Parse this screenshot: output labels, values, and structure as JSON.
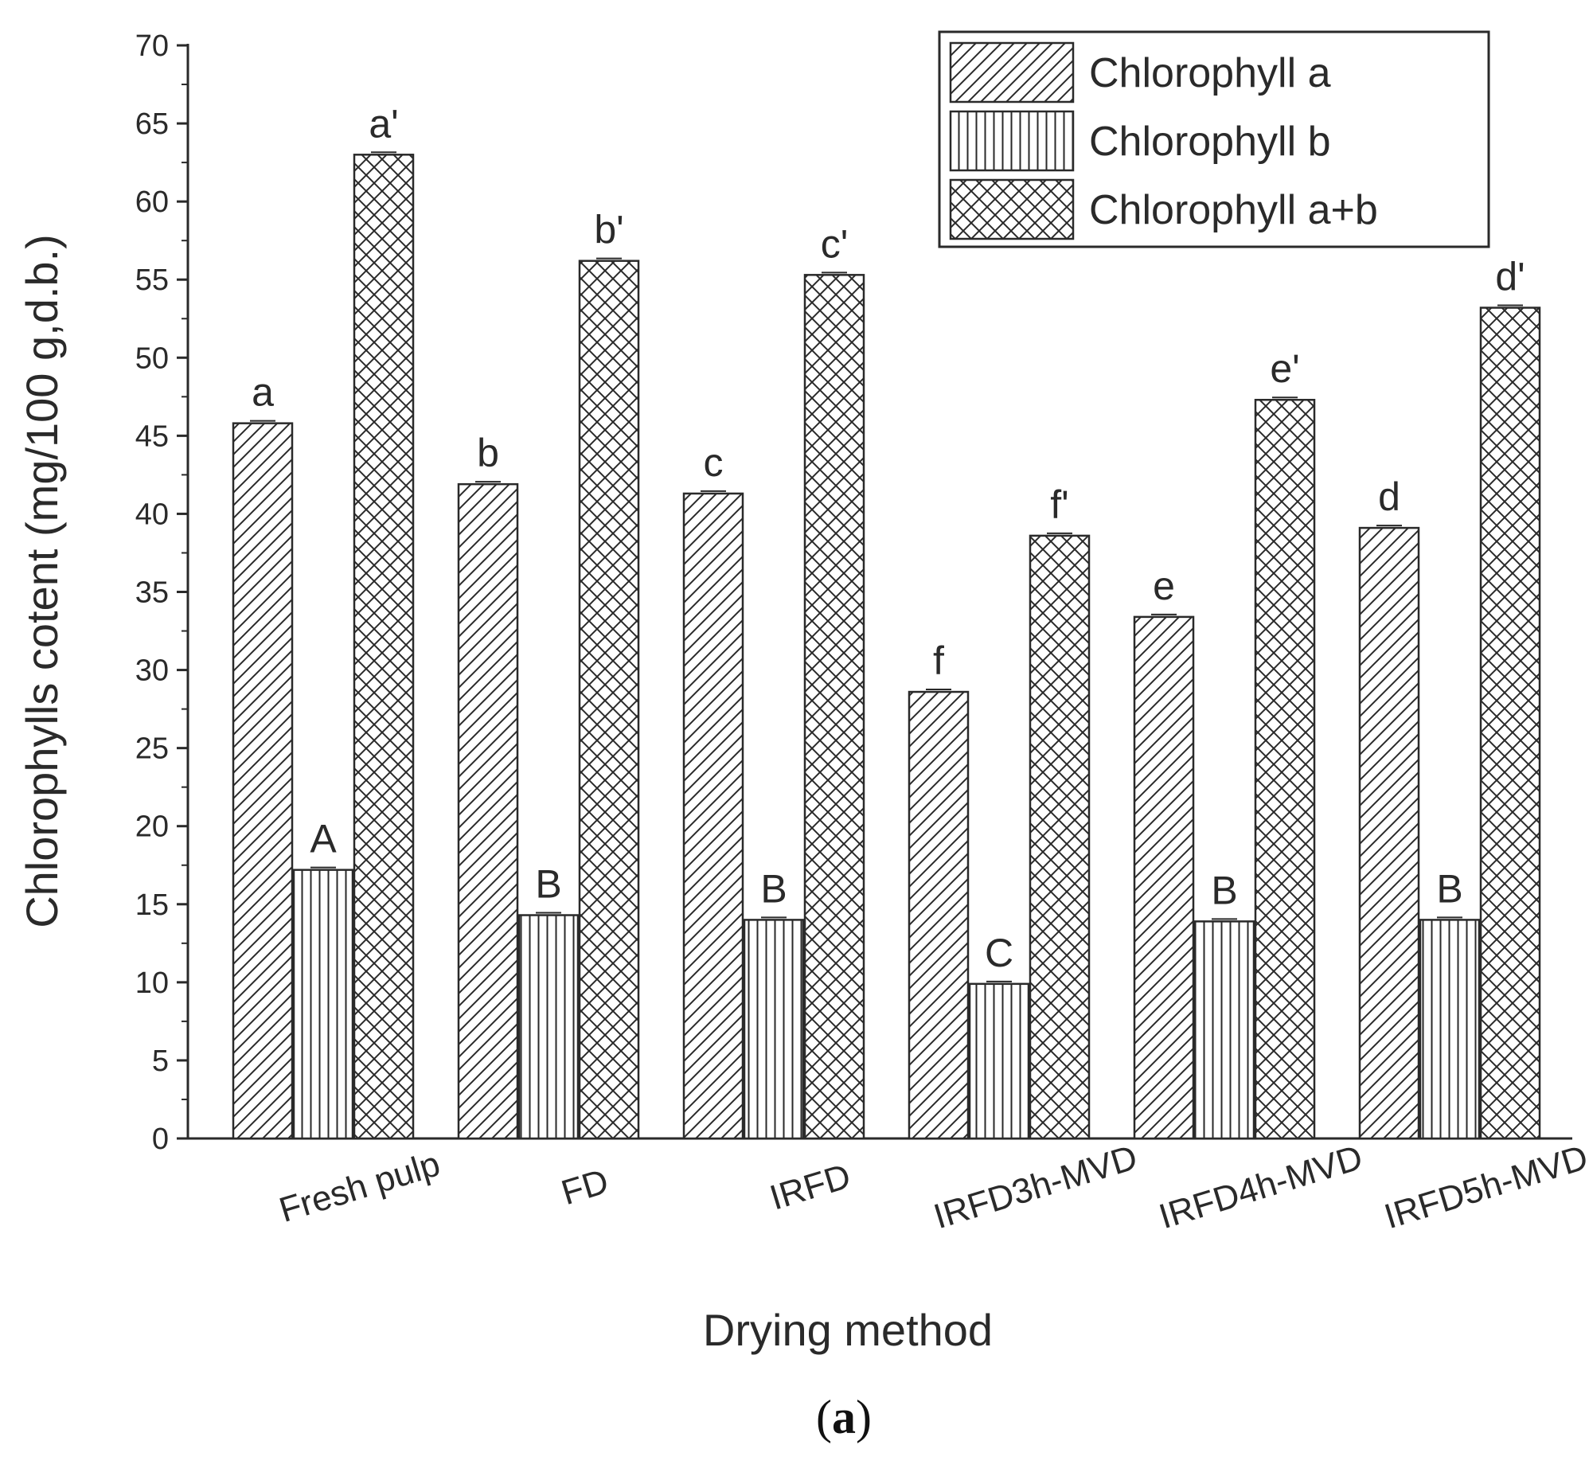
{
  "chart_data": {
    "type": "bar",
    "xlabel": "Drying method",
    "ylabel": "Chlorophylls cotent (mg/100 g,d.b.)",
    "ylim": [
      0,
      70
    ],
    "yticks": [
      0,
      5,
      10,
      15,
      20,
      25,
      30,
      35,
      40,
      45,
      50,
      55,
      60,
      65,
      70
    ],
    "grid": false,
    "legend_position": "top-right",
    "categories": [
      "Fresh pulp",
      "FD",
      "IRFD",
      "IRFD3h-MVD",
      "IRFD4h-MVD",
      "IRFD5h-MVD"
    ],
    "series": [
      {
        "name": "Chlorophyll a",
        "pattern": "diagonal",
        "values": [
          45.8,
          41.9,
          41.3,
          28.6,
          33.4,
          39.1
        ],
        "labels": [
          "a",
          "b",
          "c",
          "f",
          "e",
          "d"
        ]
      },
      {
        "name": "Chlorophyll b",
        "pattern": "vertical",
        "values": [
          17.2,
          14.3,
          14.0,
          9.9,
          13.9,
          14.0
        ],
        "labels": [
          "A",
          "B",
          "B",
          "C",
          "B",
          "B"
        ]
      },
      {
        "name": "Chlorophyll a+b",
        "pattern": "crosshatch",
        "values": [
          63.0,
          56.2,
          55.3,
          38.6,
          47.3,
          53.2
        ],
        "labels": [
          "a'",
          "b'",
          "c'",
          "f'",
          "e'",
          "d'"
        ]
      }
    ],
    "panel_label": {
      "open": "(",
      "letter": "a",
      "close": ")"
    },
    "colors": {
      "stroke": "#2a2a2a",
      "fill": "#ffffff",
      "text": "#2a2a2a"
    }
  }
}
